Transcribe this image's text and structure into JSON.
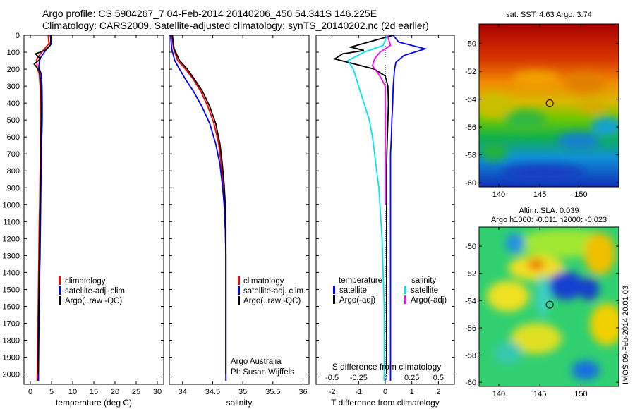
{
  "header": {
    "title_line1": "Argo profile: CS 5904267_7 04-Feb-2014 20140206_450 54.341S 146.225E",
    "title_line2": "Climatology: CARS2009. Satellite-adjusted climatology: synTS_20140202.nc (2d earlier)"
  },
  "depth_axis": {
    "ticks": [
      0,
      100,
      200,
      300,
      400,
      500,
      600,
      700,
      800,
      900,
      1000,
      1100,
      1200,
      1300,
      1400,
      1500,
      1600,
      1700,
      1800,
      1900,
      2000
    ],
    "ylim": [
      0,
      2060
    ]
  },
  "panel_temperature": {
    "xlabel": "temperature (deg C)",
    "xticks": [
      0,
      5,
      10,
      15,
      20,
      25,
      30
    ],
    "xlim": [
      -1.5,
      31.5
    ],
    "legend": [
      "climatology",
      "satellite-adj. clim.",
      "Argo(..raw -QC)"
    ]
  },
  "panel_salinity": {
    "xlabel": "salinity",
    "xticks": [
      "34",
      "34.5",
      "35",
      "35.5",
      "36"
    ],
    "xlim": [
      33.78,
      36.1
    ],
    "legend": [
      "climatology",
      "satellite-adj. clim.",
      "Argo(..raw -QC)"
    ],
    "credit_line1": "Argo Australia",
    "credit_line2": "PI: Susan Wijffels"
  },
  "panel_difference": {
    "xlabel": "T difference from climatology",
    "s_label": "S difference from climatology",
    "t_xticks": [
      "-2",
      "-1",
      "0",
      "1",
      "2"
    ],
    "t_xlim": [
      -2.6,
      2.6
    ],
    "s_xticks": [
      "-0.5",
      "-0.25",
      "0",
      "0.25",
      "0.5"
    ],
    "legend_temperature_title": "temperature",
    "legend_salinity_title": "salinity",
    "legend_temperature": [
      "satellite",
      "Argo(-adj)"
    ],
    "legend_salinity": [
      "satellite",
      "Argo(-adj)"
    ]
  },
  "map_sst": {
    "title": "sat. SST: 4.63  Argo: 3.74",
    "yticks": [
      "-50",
      "-52",
      "-54",
      "-56",
      "-58",
      "-60"
    ],
    "xticks": [
      "140",
      "145",
      "150"
    ],
    "lon_range": [
      137.6,
      154.6
    ],
    "lat_range": [
      -60.3,
      -48.6
    ],
    "argo_position": {
      "lon": 146.2,
      "lat": -54.3
    }
  },
  "map_sla": {
    "title_line1": "Altim. SLA: 0.039",
    "title_line2": "Argo h1000: -0.011  h2000: -0.023",
    "yticks": [
      "-50",
      "-52",
      "-54",
      "-56",
      "-58",
      "-60"
    ],
    "xticks": [
      "140",
      "145",
      "150"
    ],
    "lon_range": [
      137.6,
      154.6
    ],
    "lat_range": [
      -60.3,
      -48.6
    ],
    "argo_position": {
      "lon": 146.2,
      "lat": -54.3
    }
  },
  "timestamp": "IMOS 09-Feb-2014 20:01:03",
  "colors": {
    "climatology": "#ff0000",
    "satellite": "#0000ff",
    "argo": "#000000",
    "sal_satellite": "#00e5ee",
    "sal_argo": "#ff00ff"
  },
  "chart_data": [
    {
      "type": "line",
      "panel": "temperature",
      "series": [
        {
          "name": "climatology",
          "x": [
            4.2,
            4.4,
            3.0,
            1.5,
            1.6,
            2.1,
            2.3,
            2.4,
            2.45,
            2.4,
            2.35,
            2.3,
            2.25,
            2.2,
            2.1,
            2.05,
            2.0,
            1.95,
            1.9,
            1.85,
            1.8,
            1.75,
            1.7,
            1.6
          ],
          "depth": [
            0,
            50,
            90,
            140,
            190,
            230,
            300,
            400,
            500,
            600,
            700,
            800,
            900,
            1000,
            1100,
            1200,
            1300,
            1400,
            1500,
            1600,
            1700,
            1800,
            1900,
            2040
          ]
        },
        {
          "name": "satellite-adj. clim.",
          "x": [
            4.7,
            5.0,
            3.6,
            2.2,
            2.0,
            2.6,
            2.75,
            2.8,
            2.8,
            2.7,
            2.6,
            2.55,
            2.5,
            2.45,
            2.4,
            2.35,
            2.3,
            2.2,
            2.15,
            2.1,
            2.05,
            2.0,
            1.95,
            1.9
          ],
          "depth": [
            0,
            50,
            90,
            140,
            190,
            230,
            300,
            400,
            500,
            600,
            700,
            800,
            900,
            1000,
            1100,
            1200,
            1300,
            1400,
            1500,
            1600,
            1700,
            1800,
            1900,
            2040
          ]
        },
        {
          "name": "Argo(..raw -QC)",
          "x": [
            4.9,
            4.7,
            3.4,
            1.2,
            2.4,
            0.9,
            2.2,
            2.5,
            2.6,
            2.6,
            2.5,
            2.45,
            2.4,
            2.35,
            2.3,
            2.25,
            2.2,
            2.15,
            2.1,
            2.05,
            2.0,
            1.95,
            1.9,
            1.85
          ],
          "depth": [
            0,
            60,
            90,
            110,
            140,
            170,
            210,
            300,
            400,
            500,
            600,
            700,
            800,
            900,
            1000,
            1100,
            1200,
            1300,
            1400,
            1500,
            1600,
            1700,
            1800,
            2000
          ]
        }
      ]
    },
    {
      "type": "line",
      "panel": "salinity",
      "series": [
        {
          "name": "climatology",
          "x": [
            33.82,
            33.85,
            33.92,
            34.05,
            34.18,
            34.3,
            34.42,
            34.52,
            34.6,
            34.64,
            34.67,
            34.69,
            34.71,
            34.72,
            34.72,
            34.72,
            34.72,
            34.72,
            34.72,
            34.72,
            34.72,
            34.72,
            34.72
          ],
          "depth": [
            0,
            80,
            150,
            200,
            260,
            330,
            420,
            520,
            640,
            760,
            880,
            1000,
            1150,
            1300,
            1400,
            1500,
            1600,
            1700,
            1800,
            1900,
            1950,
            2000,
            2040
          ]
        },
        {
          "name": "satellite-adj. clim.",
          "x": [
            33.8,
            33.82,
            33.87,
            33.95,
            34.05,
            34.18,
            34.32,
            34.45,
            34.55,
            34.62,
            34.66,
            34.69,
            34.71,
            34.72,
            34.72,
            34.72,
            34.72,
            34.72,
            34.72,
            34.72,
            34.72,
            34.72,
            34.72
          ],
          "depth": [
            0,
            80,
            150,
            200,
            260,
            330,
            420,
            520,
            640,
            760,
            880,
            1000,
            1150,
            1300,
            1400,
            1500,
            1600,
            1700,
            1800,
            1900,
            1950,
            2000,
            2040
          ]
        },
        {
          "name": "Argo(..raw -QC)",
          "x": [
            33.83,
            33.86,
            33.95,
            34.08,
            34.2,
            34.33,
            34.45,
            34.55,
            34.62,
            34.66,
            34.69,
            34.71,
            34.72,
            34.72,
            34.72,
            34.72,
            34.72,
            34.72,
            34.72,
            34.72,
            34.72
          ],
          "depth": [
            0,
            80,
            150,
            200,
            260,
            330,
            420,
            520,
            640,
            760,
            880,
            1000,
            1150,
            1300,
            1400,
            1500,
            1600,
            1700,
            1800,
            1900,
            2000
          ]
        }
      ]
    },
    {
      "type": "line",
      "panel": "difference",
      "series": [
        {
          "name": "temperature satellite",
          "x": [
            0.3,
            0.5,
            1.5,
            0.7,
            0.4,
            0.35,
            0.3,
            0.28,
            0.25,
            0.23,
            0.2,
            0.2,
            0.2,
            0.2,
            0.2,
            0.2,
            0.2,
            0.2,
            0.2,
            0.2,
            0.2,
            0.2
          ],
          "depth": [
            0,
            40,
            80,
            120,
            160,
            200,
            300,
            400,
            500,
            600,
            700,
            800,
            900,
            1000,
            1200,
            1400,
            1600,
            1800,
            1900,
            2000,
            2020,
            2040
          ]
        },
        {
          "name": "temperature Argo(-adj)",
          "x": [
            0.3,
            -1.3,
            -0.8,
            -1.6,
            -1.9,
            -0.4,
            0.0,
            0.1,
            0.12,
            0.1,
            0.08,
            0.06,
            0.05,
            0.05,
            0.05,
            0.05,
            0.05,
            0.05,
            0.05,
            0.05
          ],
          "depth": [
            0,
            70,
            90,
            110,
            140,
            200,
            240,
            300,
            400,
            500,
            600,
            700,
            800,
            1000,
            1200,
            1400,
            1600,
            1800,
            1900,
            2000
          ]
        },
        {
          "name": "salinity satellite",
          "x": [
            0.02,
            -0.02,
            -0.2,
            -0.35,
            -0.3,
            -0.25,
            -0.2,
            -0.15,
            -0.12,
            -0.1,
            -0.08,
            -0.06,
            -0.05,
            -0.04,
            -0.03,
            -0.02,
            -0.01,
            -0.01,
            -0.01,
            -0.01,
            -0.01
          ],
          "depth": [
            0,
            60,
            100,
            150,
            200,
            300,
            400,
            500,
            600,
            700,
            800,
            900,
            1000,
            1100,
            1200,
            1400,
            1600,
            1800,
            1900,
            2000,
            2040
          ]
        },
        {
          "name": "salinity Argo(-adj)",
          "x": [
            0.02,
            0.05,
            -0.05,
            -0.1,
            -0.12,
            -0.05,
            0.0,
            0.0,
            0.0,
            0.0,
            0.0
          ],
          "depth": [
            0,
            60,
            100,
            140,
            180,
            240,
            300,
            400,
            600,
            800,
            1000
          ]
        }
      ]
    }
  ]
}
